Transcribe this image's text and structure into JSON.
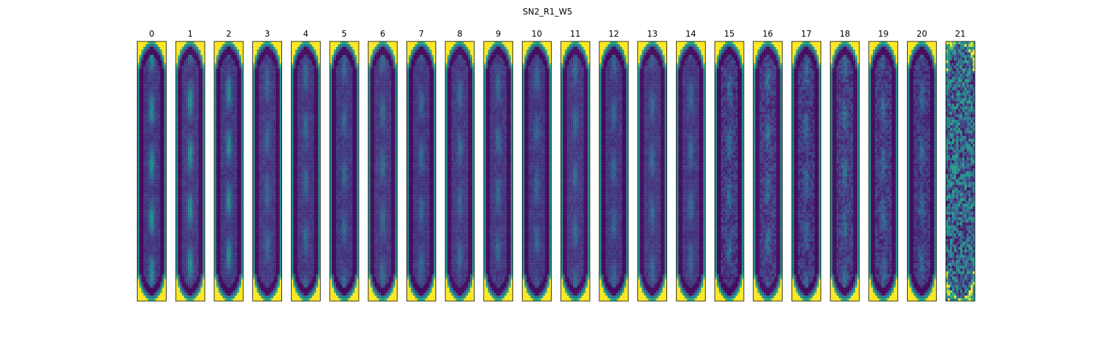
{
  "chart_data": {
    "type": "heatmap",
    "title": "SN2_R1_W5",
    "panels": [
      "0",
      "1",
      "2",
      "3",
      "4",
      "5",
      "6",
      "7",
      "8",
      "9",
      "10",
      "11",
      "12",
      "13",
      "14",
      "15",
      "16",
      "17",
      "18",
      "19",
      "20",
      "21"
    ],
    "colormap": "viridis",
    "axes_visible": false
  },
  "colors": {
    "low": "#440154",
    "high": "#fde725",
    "frame": "#000000"
  }
}
